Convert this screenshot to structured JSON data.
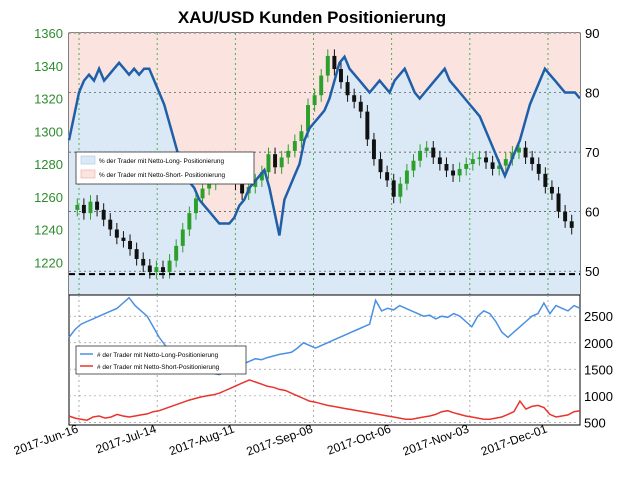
{
  "title": "XAU/USD Kunden Positionierung",
  "colors": {
    "price_axis": "#2e8b2e",
    "candle_up": "#2ca02c",
    "candle_down": "#111111",
    "long_line": "#1f5fa8",
    "long_fill": "#dbe9f7",
    "short_fill": "#fbe3e0",
    "long_count": "#4a90e2",
    "short_count": "#e8342c",
    "grid": "#2ca02c",
    "ref_line": "#000000"
  },
  "chart_data": [
    {
      "type": "line",
      "panel": "top",
      "xlabels": [
        "2017-Jun-16",
        "2017-Jul-14",
        "2017-Aug-11",
        "2017-Sep-08",
        "2017-Oct-06",
        "2017-Nov-03",
        "2017-Dec-01"
      ],
      "left_axis": {
        "ticks": [
          1220,
          1240,
          1260,
          1280,
          1300,
          1320,
          1340,
          1360
        ],
        "range": [
          1200,
          1360
        ]
      },
      "right_axis": {
        "ticks": [
          50,
          60,
          70,
          80,
          90
        ],
        "range": [
          46,
          90
        ]
      },
      "reference_line": 49.5,
      "legend": [
        "% der Trader mit Netto-Long- Positionierung",
        "% der Trader mit Netto-Short- Positionierung"
      ],
      "price_candles_close": [
        1255,
        1250,
        1257,
        1252,
        1246,
        1240,
        1235,
        1233,
        1228,
        1222,
        1218,
        1214,
        1217,
        1214,
        1221,
        1230,
        1240,
        1250,
        1259,
        1265,
        1268,
        1273,
        1278,
        1272,
        1268,
        1262,
        1266,
        1270,
        1275,
        1286,
        1278,
        1284,
        1288,
        1294,
        1300,
        1316,
        1322,
        1334,
        1346,
        1338,
        1330,
        1322,
        1318,
        1312,
        1295,
        1283,
        1275,
        1270,
        1260,
        1268,
        1276,
        1282,
        1288,
        1290,
        1284,
        1280,
        1276,
        1273,
        1277,
        1280,
        1283,
        1284,
        1281,
        1277,
        1279,
        1283,
        1287,
        1290,
        1284,
        1280,
        1274,
        1266,
        1262,
        1251,
        1245,
        1241
      ],
      "long_pct": [
        72,
        76,
        80,
        82,
        83,
        82,
        84,
        82,
        83,
        84,
        85,
        84,
        83,
        84,
        83,
        84,
        84,
        82,
        80,
        78,
        75,
        72,
        69,
        67,
        65,
        64,
        62,
        61,
        60,
        59,
        58,
        58,
        58,
        59,
        61,
        62,
        64,
        65,
        66,
        67,
        64,
        60,
        56,
        62,
        64,
        66,
        68,
        72,
        74,
        75,
        76,
        77,
        79,
        82,
        85,
        86,
        84,
        83,
        82,
        81,
        80,
        81,
        82,
        81,
        80,
        82,
        83,
        84,
        82,
        80,
        79,
        80,
        81,
        82,
        83,
        84,
        82,
        81,
        80,
        79,
        78,
        77,
        76,
        74,
        72,
        70,
        68,
        66,
        68,
        70,
        72,
        75,
        78,
        80,
        82,
        84,
        83,
        82,
        81,
        80,
        80,
        80,
        79
      ],
      "series": [
        {
          "name": "# der Trader mit Netto-Long-Positionierung"
        },
        {
          "name": "# der Trader mit Netto-Short-Positionierung"
        }
      ]
    },
    {
      "type": "line",
      "panel": "bottom",
      "right_axis": {
        "ticks": [
          500,
          1000,
          1500,
          2000,
          2500
        ],
        "range": [
          450,
          2900
        ]
      },
      "long_count": [
        2100,
        2250,
        2350,
        2400,
        2450,
        2500,
        2550,
        2600,
        2650,
        2750,
        2850,
        2700,
        2600,
        2500,
        2300,
        2100,
        1950,
        1850,
        1750,
        1650,
        1600,
        1550,
        1500,
        1450,
        1420,
        1400,
        1450,
        1500,
        1550,
        1600,
        1650,
        1700,
        1680,
        1720,
        1750,
        1780,
        1800,
        1820,
        1900,
        2000,
        1950,
        1900,
        1950,
        2000,
        2050,
        2100,
        2150,
        2200,
        2250,
        2300,
        2350,
        2800,
        2600,
        2650,
        2620,
        2700,
        2650,
        2600,
        2550,
        2500,
        2520,
        2450,
        2500,
        2480,
        2550,
        2500,
        2400,
        2300,
        2500,
        2600,
        2550,
        2400,
        2200,
        2100,
        2200,
        2300,
        2400,
        2500,
        2550,
        2750,
        2550,
        2700,
        2650,
        2600,
        2700,
        2650
      ],
      "short_count": [
        620,
        580,
        560,
        540,
        600,
        620,
        580,
        600,
        650,
        620,
        600,
        620,
        640,
        660,
        700,
        720,
        760,
        800,
        840,
        880,
        920,
        950,
        980,
        1000,
        1020,
        1050,
        1100,
        1150,
        1200,
        1250,
        1300,
        1260,
        1220,
        1180,
        1160,
        1120,
        1100,
        1050,
        1000,
        950,
        900,
        880,
        850,
        820,
        800,
        780,
        760,
        740,
        720,
        700,
        680,
        660,
        640,
        620,
        600,
        580,
        560,
        560,
        580,
        600,
        620,
        650,
        700,
        720,
        680,
        650,
        620,
        600,
        580,
        560,
        560,
        580,
        600,
        650,
        700,
        900,
        750,
        800,
        820,
        780,
        650,
        600,
        620,
        640,
        700,
        720
      ],
      "xlabels": [
        "2017-Jun-16",
        "2017-Jul-14",
        "2017-Aug-11",
        "2017-Sep-08",
        "2017-Oct-06",
        "2017-Nov-03",
        "2017-Dec-01"
      ]
    }
  ]
}
